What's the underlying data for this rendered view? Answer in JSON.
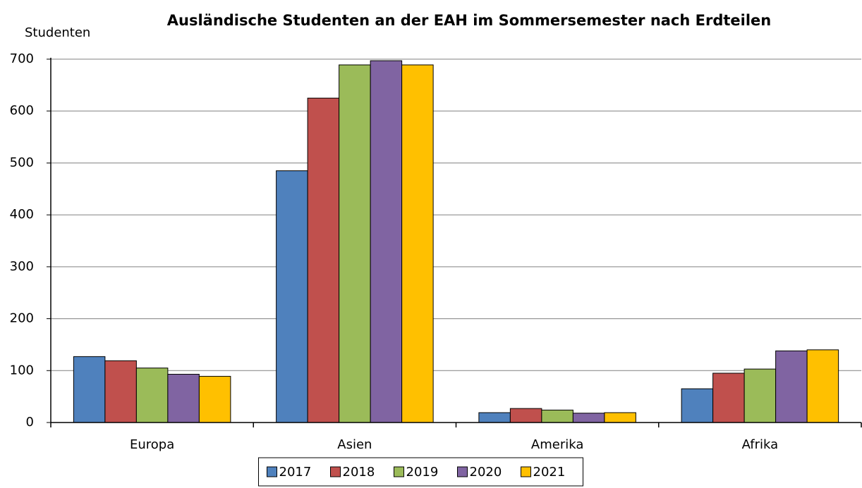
{
  "chart_data": {
    "type": "bar",
    "title": "Ausländische Studenten an der EAH im Sommersemester nach Erdteilen",
    "y_label": "Studenten",
    "categories": [
      "Europa",
      "Asien",
      "Amerika",
      "Afrika"
    ],
    "series": [
      {
        "name": "2017",
        "color": "#4f81bd",
        "values": [
          127,
          485,
          19,
          65
        ]
      },
      {
        "name": "2018",
        "color": "#c0504d",
        "values": [
          119,
          625,
          27,
          95
        ]
      },
      {
        "name": "2019",
        "color": "#9bbb59",
        "values": [
          105,
          689,
          24,
          103
        ]
      },
      {
        "name": "2020",
        "color": "#8064a2",
        "values": [
          93,
          697,
          18,
          138
        ]
      },
      {
        "name": "2021",
        "color": "#ffc000",
        "values": [
          89,
          689,
          19,
          140
        ]
      }
    ],
    "ylim": [
      0,
      700
    ],
    "yticks": [
      0,
      100,
      200,
      300,
      400,
      500,
      600,
      700
    ],
    "grid": true,
    "legend": "bottom"
  }
}
